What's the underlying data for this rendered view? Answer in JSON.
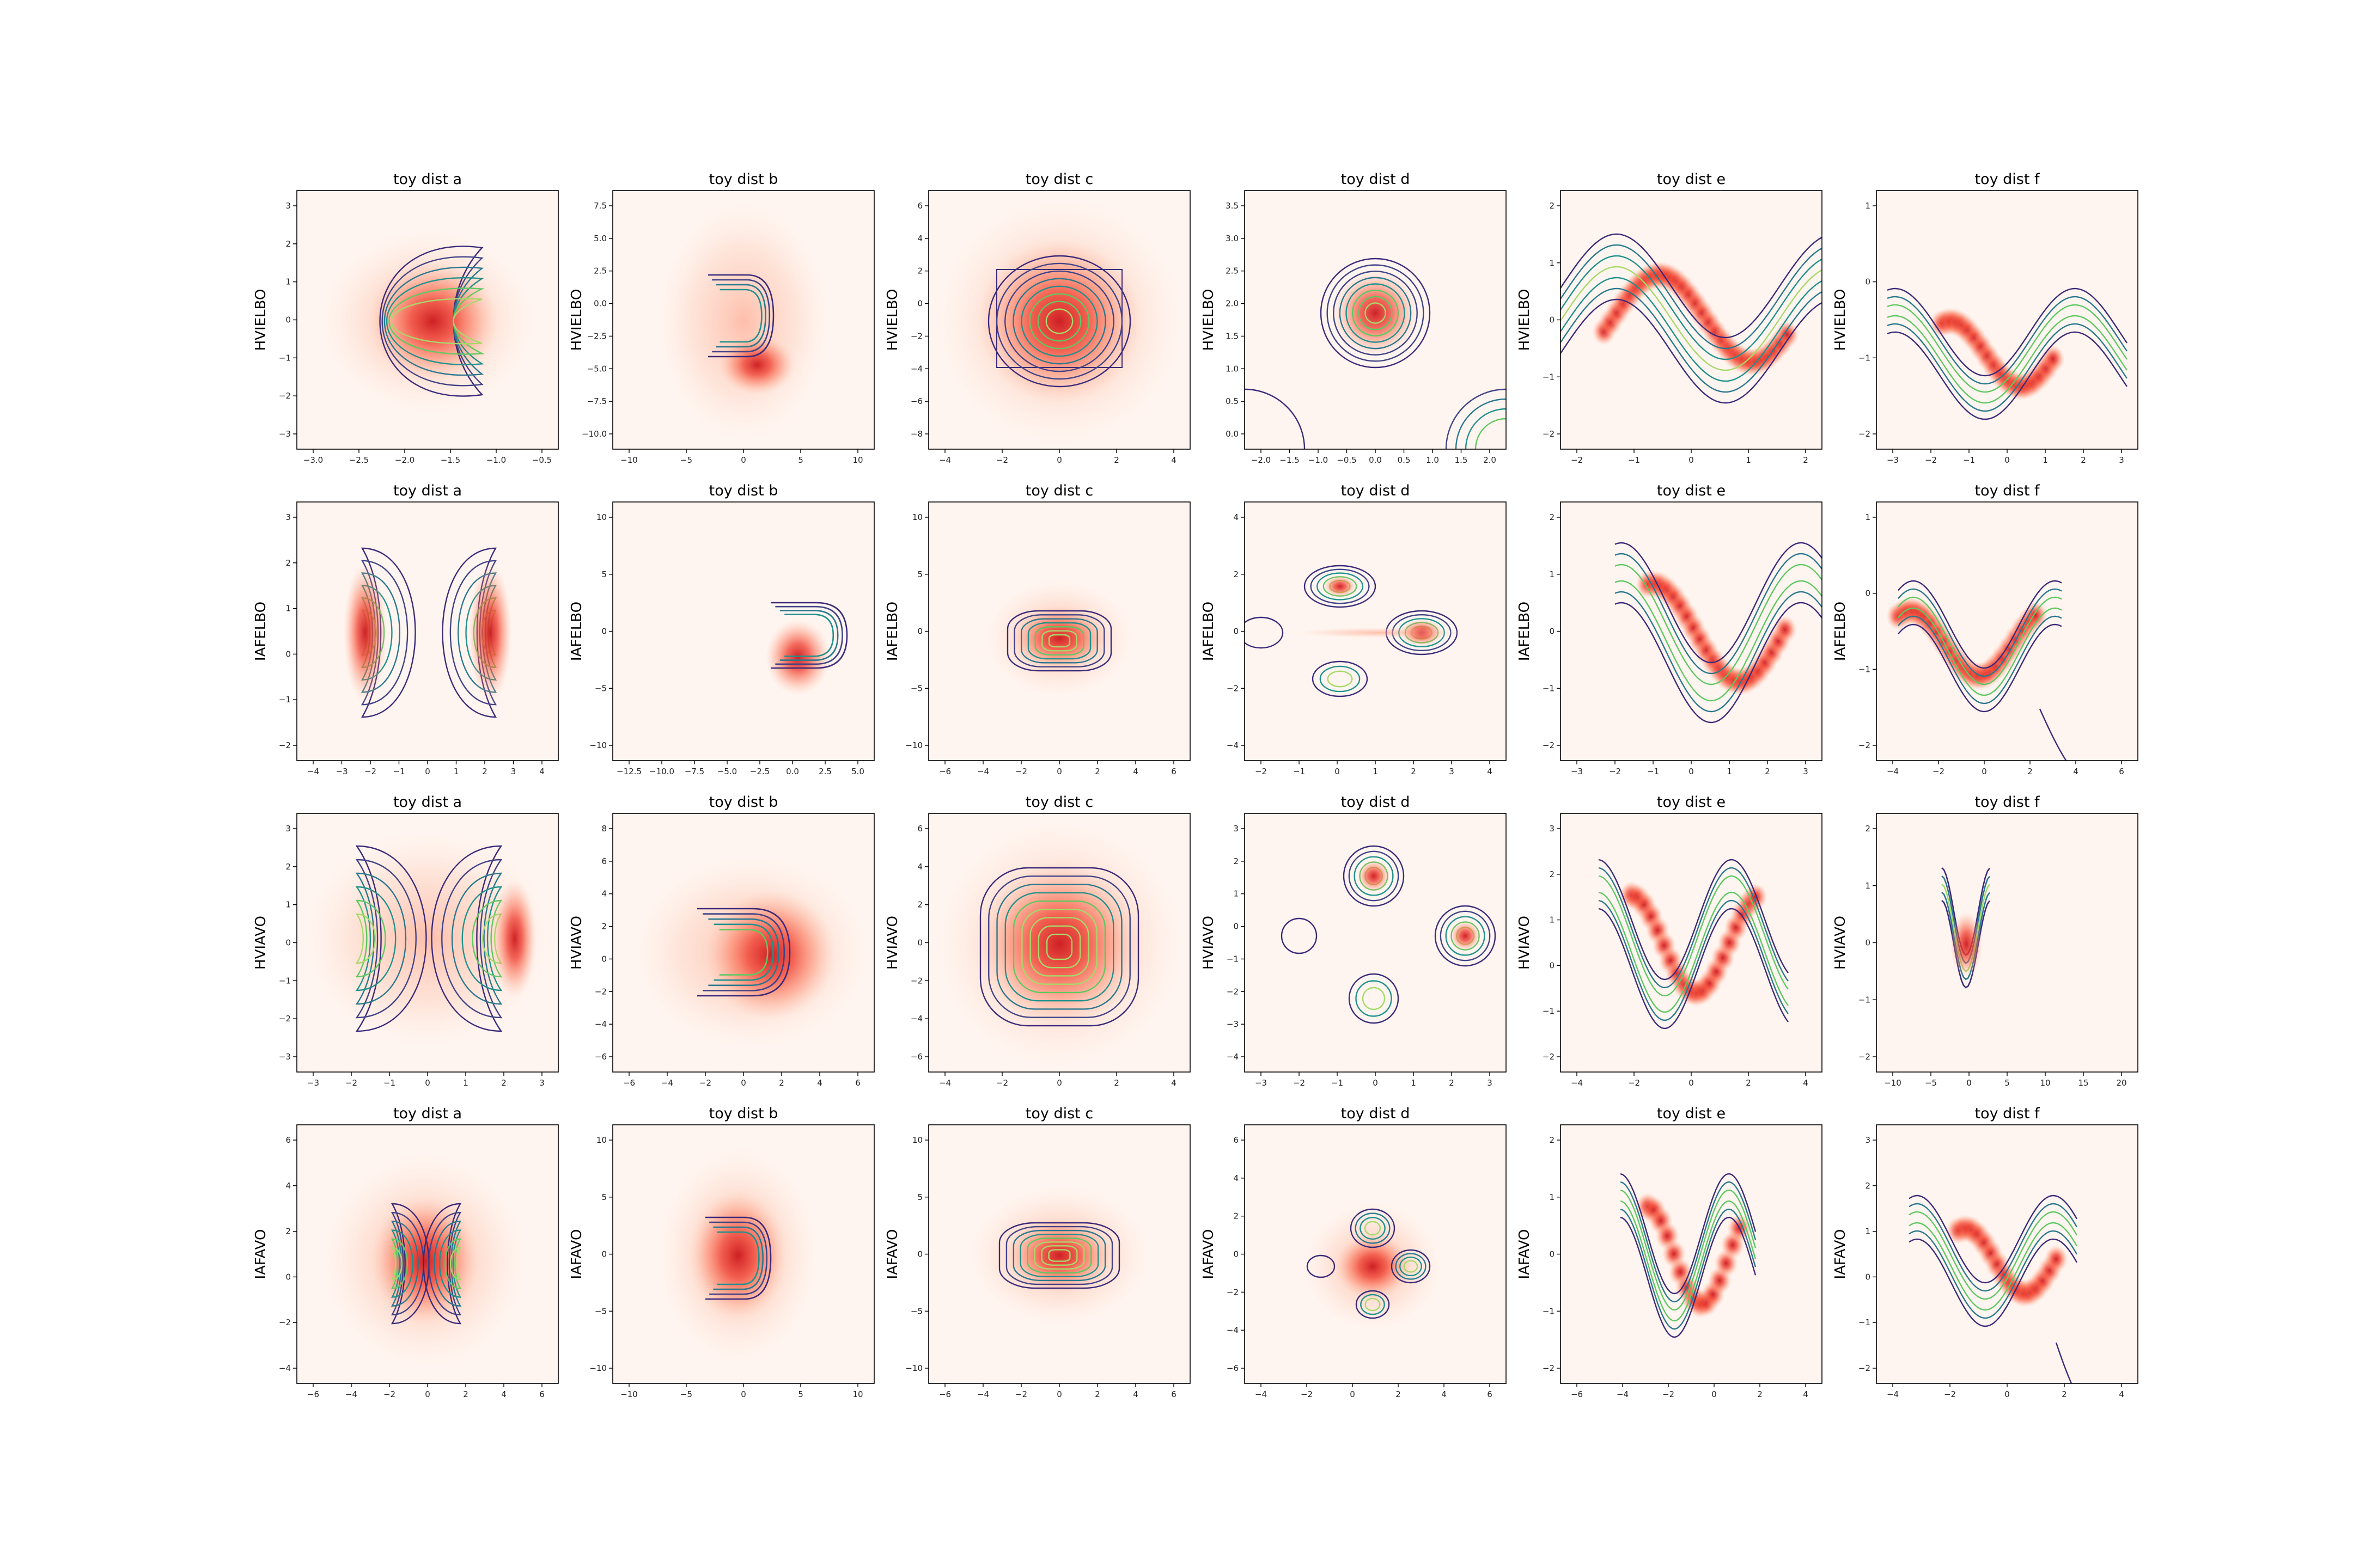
{
  "chart_data": {
    "type": "density-contour-grid",
    "columns": [
      "toy dist a",
      "toy dist b",
      "toy dist c",
      "toy dist d",
      "toy dist e",
      "toy dist f"
    ],
    "rows": [
      "HVIELBO",
      "IAFELBO",
      "HVIAVO",
      "IAFAVO"
    ],
    "colors": {
      "background": "#fff5f0",
      "density_peak": "#d7191c",
      "contour_low": "#3b2a7a",
      "contour_mid": "#21918c",
      "contour_high": "#a6d96a"
    },
    "panels": [
      [
        {
          "xticks": [
            "−3.0",
            "−2.5",
            "−2.0",
            "−1.5",
            "−1.0",
            "−0.5"
          ],
          "yticks": [
            "3",
            "2",
            "1",
            "0",
            "−1",
            "−2",
            "−3"
          ]
        },
        {
          "xticks": [
            "−10",
            "−5",
            "0",
            "5",
            "10"
          ],
          "yticks": [
            "7.5",
            "5.0",
            "2.5",
            "0.0",
            "−2.5",
            "−5.0",
            "−7.5",
            "−10.0"
          ]
        },
        {
          "xticks": [
            "−4",
            "−2",
            "0",
            "2",
            "4"
          ],
          "yticks": [
            "6",
            "4",
            "2",
            "0",
            "−2",
            "−4",
            "−6",
            "−8"
          ]
        },
        {
          "xticks": [
            "−2.0",
            "−1.5",
            "−1.0",
            "−0.5",
            "0.0",
            "0.5",
            "1.0",
            "1.5",
            "2.0"
          ],
          "yticks": [
            "3.5",
            "3.0",
            "2.5",
            "2.0",
            "1.5",
            "1.0",
            "0.5",
            "0.0"
          ]
        },
        {
          "xticks": [
            "−2",
            "−1",
            "0",
            "1",
            "2"
          ],
          "yticks": [
            "2",
            "1",
            "0",
            "−1",
            "−2"
          ]
        },
        {
          "xticks": [
            "−3",
            "−2",
            "−1",
            "0",
            "1",
            "2",
            "3"
          ],
          "yticks": [
            "1",
            "0",
            "−1",
            "−2"
          ]
        }
      ],
      [
        {
          "xticks": [
            "−4",
            "−3",
            "−2",
            "−1",
            "0",
            "1",
            "2",
            "3",
            "4"
          ],
          "yticks": [
            "3",
            "2",
            "1",
            "0",
            "−1",
            "−2"
          ]
        },
        {
          "xticks": [
            "−12.5",
            "−10.0",
            "−7.5",
            "−5.0",
            "−2.5",
            "0.0",
            "2.5",
            "5.0"
          ],
          "yticks": [
            "10",
            "5",
            "0",
            "−5",
            "−10"
          ]
        },
        {
          "xticks": [
            "−6",
            "−4",
            "−2",
            "0",
            "2",
            "4",
            "6"
          ],
          "yticks": [
            "10",
            "5",
            "0",
            "−5",
            "−10"
          ]
        },
        {
          "xticks": [
            "−2",
            "−1",
            "0",
            "1",
            "2",
            "3",
            "4"
          ],
          "yticks": [
            "4",
            "2",
            "0",
            "−2",
            "−4"
          ]
        },
        {
          "xticks": [
            "−3",
            "−2",
            "−1",
            "0",
            "1",
            "2",
            "3"
          ],
          "yticks": [
            "2",
            "1",
            "0",
            "−1",
            "−2"
          ]
        },
        {
          "xticks": [
            "−4",
            "−2",
            "0",
            "2",
            "4",
            "6"
          ],
          "yticks": [
            "1",
            "0",
            "−1",
            "−2"
          ]
        }
      ],
      [
        {
          "xticks": [
            "−3",
            "−2",
            "−1",
            "0",
            "1",
            "2",
            "3"
          ],
          "yticks": [
            "3",
            "2",
            "1",
            "0",
            "−1",
            "−2",
            "−3"
          ]
        },
        {
          "xticks": [
            "−6",
            "−4",
            "−2",
            "0",
            "2",
            "4",
            "6"
          ],
          "yticks": [
            "8",
            "6",
            "4",
            "2",
            "0",
            "−2",
            "−4",
            "−6"
          ]
        },
        {
          "xticks": [
            "−4",
            "−2",
            "0",
            "2",
            "4"
          ],
          "yticks": [
            "6",
            "4",
            "2",
            "0",
            "−2",
            "−4",
            "−6"
          ]
        },
        {
          "xticks": [
            "−3",
            "−2",
            "−1",
            "0",
            "1",
            "2",
            "3"
          ],
          "yticks": [
            "3",
            "2",
            "1",
            "0",
            "−1",
            "−2",
            "−3",
            "−4"
          ]
        },
        {
          "xticks": [
            "−4",
            "−2",
            "0",
            "2",
            "4"
          ],
          "yticks": [
            "3",
            "2",
            "1",
            "0",
            "−1",
            "−2"
          ]
        },
        {
          "xticks": [
            "−10",
            "−5",
            "0",
            "5",
            "10",
            "15",
            "20"
          ],
          "yticks": [
            "2",
            "1",
            "0",
            "−1",
            "−2"
          ]
        }
      ],
      [
        {
          "xticks": [
            "−6",
            "−4",
            "−2",
            "0",
            "2",
            "4",
            "6"
          ],
          "yticks": [
            "6",
            "4",
            "2",
            "0",
            "−2",
            "−4"
          ]
        },
        {
          "xticks": [
            "−10",
            "−5",
            "0",
            "5",
            "10"
          ],
          "yticks": [
            "10",
            "5",
            "0",
            "−5",
            "−10"
          ]
        },
        {
          "xticks": [
            "−6",
            "−4",
            "−2",
            "0",
            "2",
            "4",
            "6"
          ],
          "yticks": [
            "10",
            "5",
            "0",
            "−5",
            "−10"
          ]
        },
        {
          "xticks": [
            "−4",
            "−2",
            "0",
            "2",
            "4",
            "6"
          ],
          "yticks": [
            "6",
            "4",
            "2",
            "0",
            "−2",
            "−4",
            "−6"
          ]
        },
        {
          "xticks": [
            "−6",
            "−4",
            "−2",
            "0",
            "2",
            "4"
          ],
          "yticks": [
            "2",
            "1",
            "0",
            "−1",
            "−2"
          ]
        },
        {
          "xticks": [
            "−4",
            "−2",
            "0",
            "2",
            "4"
          ],
          "yticks": [
            "3",
            "2",
            "1",
            "0",
            "−1",
            "−2"
          ]
        }
      ]
    ]
  }
}
